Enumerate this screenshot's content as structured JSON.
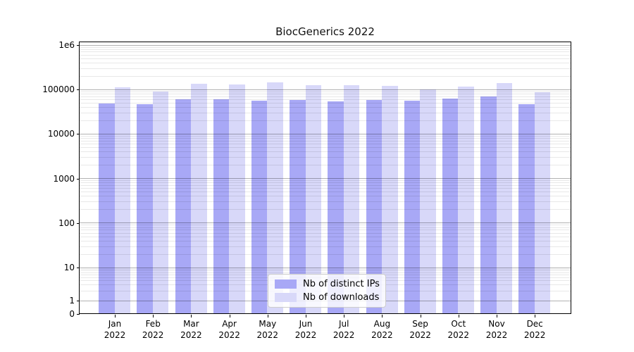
{
  "chart_data": {
    "type": "bar",
    "title": "BiocGenerics 2022",
    "yscale": "log",
    "grid": true,
    "legend_position": "lower center",
    "categories": [
      "Jan 2022",
      "Feb 2022",
      "Mar 2022",
      "Apr 2022",
      "May 2022",
      "Jun 2022",
      "Jul 2022",
      "Aug 2022",
      "Sep 2022",
      "Oct 2022",
      "Nov 2022",
      "Dec 2022"
    ],
    "series": [
      {
        "name": "Nb of distinct IPs",
        "color": "#a8a8f6",
        "values": [
          48500,
          47000,
          60500,
          60000,
          56000,
          57000,
          53500,
          58000,
          56000,
          63000,
          69000,
          47000
        ]
      },
      {
        "name": "Nb of downloads",
        "color": "#d8d8f9",
        "values": [
          110000,
          90000,
          135000,
          129000,
          145000,
          125000,
          122000,
          118000,
          98000,
          117000,
          136000,
          86000
        ]
      }
    ],
    "y_ticks": [
      {
        "value": 1000000,
        "label": "1e6"
      },
      {
        "value": 100000,
        "label": "100000"
      },
      {
        "value": 10000,
        "label": "10000"
      },
      {
        "value": 1000,
        "label": "1000"
      },
      {
        "value": 100,
        "label": "100"
      },
      {
        "value": 10,
        "label": "10"
      },
      {
        "value": 1,
        "label": "1"
      },
      {
        "value": 0,
        "label": "0"
      }
    ],
    "ylim": [
      0,
      1170000
    ],
    "xlabel": "",
    "ylabel": ""
  }
}
